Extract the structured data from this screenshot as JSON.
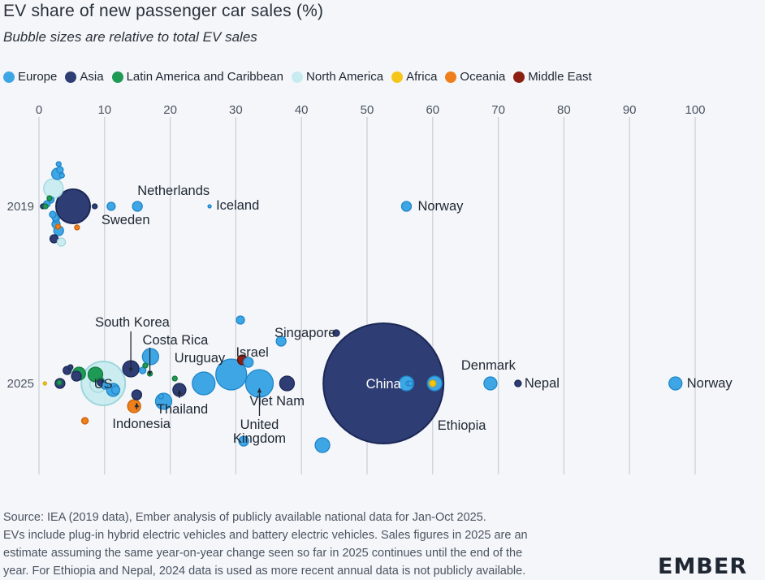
{
  "title": "EV share of new passenger car sales (%)",
  "subtitle": "Bubble sizes are relative to total EV sales",
  "legend": [
    {
      "label": "Europe",
      "color": "#3fa6e6"
    },
    {
      "label": "Asia",
      "color": "#2e3e74"
    },
    {
      "label": "Latin America and Caribbean",
      "color": "#1f9a55"
    },
    {
      "label": "North America",
      "color": "#c6ecf0"
    },
    {
      "label": "Africa",
      "color": "#f5c518"
    },
    {
      "label": "Oceania",
      "color": "#ef7f1a"
    },
    {
      "label": "Middle East",
      "color": "#8b1f12"
    }
  ],
  "source": [
    "Source: IEA (2019 data), Ember analysis of publicly available national data for Jan-Oct 2025.",
    "EVs include plug-in hybrid electric vehicles and battery electric vehicles. Sales figures in 2025 are an",
    "estimate assuming the same year-on-year change seen so far in 2025 continues until the end of the",
    "year. For Ethiopia and Nepal, 2024 data is used as more recent annual data is not publicly available."
  ],
  "logo": "EMBER",
  "chart_data": {
    "type": "scatter",
    "title": "EV share of new passenger car sales (%)",
    "xlim": [
      0,
      100
    ],
    "xticks": [
      0,
      10,
      20,
      30,
      40,
      50,
      60,
      70,
      80,
      90,
      100
    ],
    "categories": [
      "2019",
      "2025"
    ],
    "points": [
      {
        "year": "2019",
        "x": 5.2,
        "size": 21,
        "region": "Asia",
        "label": ""
      },
      {
        "year": "2019",
        "x": 2.2,
        "size": 12,
        "region": "North America",
        "label": ""
      },
      {
        "year": "2019",
        "x": 56,
        "size": 6,
        "region": "Europe",
        "label": "Norway"
      },
      {
        "year": "2019",
        "x": 26,
        "size": 2,
        "region": "Europe",
        "label": "Iceland"
      },
      {
        "year": "2019",
        "x": 15,
        "size": 6,
        "region": "Europe",
        "label": "Netherlands"
      },
      {
        "year": "2019",
        "x": 11,
        "size": 5,
        "region": "Europe",
        "label": "Sweden"
      },
      {
        "year": "2019",
        "x": 8.5,
        "size": 3,
        "region": "Asia",
        "label": ""
      },
      {
        "year": "2019",
        "x": 2.8,
        "size": 7,
        "region": "Europe",
        "label": ""
      },
      {
        "year": "2019",
        "x": 3.2,
        "size": 4,
        "region": "Europe",
        "label": ""
      },
      {
        "year": "2019",
        "x": 1.8,
        "size": 4,
        "region": "Europe",
        "label": ""
      },
      {
        "year": "2019",
        "x": 1.2,
        "size": 4,
        "region": "Europe",
        "label": ""
      },
      {
        "year": "2019",
        "x": 0.6,
        "size": 3,
        "region": "Asia",
        "label": ""
      },
      {
        "year": "2019",
        "x": 1.0,
        "size": 3,
        "region": "Latin America and Caribbean",
        "label": ""
      },
      {
        "year": "2019",
        "x": 2.6,
        "size": 5,
        "region": "Europe",
        "label": ""
      },
      {
        "year": "2019",
        "x": 3.0,
        "size": 6,
        "region": "Europe",
        "label": ""
      },
      {
        "year": "2019",
        "x": 2.3,
        "size": 5,
        "region": "Asia",
        "label": ""
      },
      {
        "year": "2019",
        "x": 3.4,
        "size": 5,
        "region": "North America",
        "label": ""
      },
      {
        "year": "2019",
        "x": 2.6,
        "size": 4,
        "region": "Europe",
        "label": ""
      },
      {
        "year": "2019",
        "x": 3.0,
        "size": 3,
        "region": "Europe",
        "label": ""
      },
      {
        "year": "2019",
        "x": 2.5,
        "size": 4,
        "region": "Europe",
        "label": ""
      },
      {
        "year": "2019",
        "x": 3.5,
        "size": 3,
        "region": "Europe",
        "label": ""
      },
      {
        "year": "2019",
        "x": 2.9,
        "size": 3,
        "region": "Oceania",
        "label": ""
      },
      {
        "year": "2019",
        "x": 5.8,
        "size": 3,
        "region": "Oceania",
        "label": ""
      },
      {
        "year": "2019",
        "x": 1.6,
        "size": 3,
        "region": "Latin America and Caribbean",
        "label": ""
      },
      {
        "year": "2019",
        "x": 2.1,
        "size": 4,
        "region": "Europe",
        "label": ""
      },
      {
        "year": "2025",
        "x": 52.5,
        "size": 74,
        "region": "Asia",
        "label": "China"
      },
      {
        "year": "2025",
        "x": 9.8,
        "size": 27,
        "region": "North America",
        "label": "US"
      },
      {
        "year": "2025",
        "x": 97,
        "size": 8,
        "region": "Europe",
        "label": "Norway"
      },
      {
        "year": "2025",
        "x": 68.8,
        "size": 8,
        "region": "Europe",
        "label": "Denmark"
      },
      {
        "year": "2025",
        "x": 73,
        "size": 4,
        "region": "Asia",
        "label": "Nepal"
      },
      {
        "year": "2025",
        "x": 60,
        "size": 4,
        "region": "Africa",
        "label": "Ethiopia"
      },
      {
        "year": "2025",
        "x": 45.3,
        "size": 4,
        "region": "Asia",
        "label": "Singapore"
      },
      {
        "year": "2025",
        "x": 31,
        "size": 6,
        "region": "Middle East",
        "label": "Israel"
      },
      {
        "year": "2025",
        "x": 33.6,
        "size": 17,
        "region": "Europe",
        "label": "United Kingdom"
      },
      {
        "year": "2025",
        "x": 37.8,
        "size": 9,
        "region": "Asia",
        "label": "Viet Nam"
      },
      {
        "year": "2025",
        "x": 29.3,
        "size": 19,
        "region": "Europe",
        "label": ""
      },
      {
        "year": "2025",
        "x": 25.1,
        "size": 14,
        "region": "Europe",
        "label": "Uruguay"
      },
      {
        "year": "2025",
        "x": 21.4,
        "size": 8,
        "region": "Asia",
        "label": "Thailand"
      },
      {
        "year": "2025",
        "x": 19,
        "size": 10,
        "region": "Europe",
        "label": ""
      },
      {
        "year": "2025",
        "x": 17,
        "size": 10,
        "region": "Europe",
        "label": ""
      },
      {
        "year": "2025",
        "x": 16.9,
        "size": 3,
        "region": "Latin America and Caribbean",
        "label": "Costa Rica"
      },
      {
        "year": "2025",
        "x": 14,
        "size": 10,
        "region": "Asia",
        "label": "South Korea"
      },
      {
        "year": "2025",
        "x": 14.5,
        "size": 8,
        "region": "Oceania",
        "label": ""
      },
      {
        "year": "2025",
        "x": 14.9,
        "size": 6,
        "region": "Asia",
        "label": "Indonesia"
      },
      {
        "year": "2025",
        "x": 11.3,
        "size": 8,
        "region": "Europe",
        "label": ""
      },
      {
        "year": "2025",
        "x": 8.6,
        "size": 9,
        "region": "Latin America and Caribbean",
        "label": ""
      },
      {
        "year": "2025",
        "x": 6.1,
        "size": 8,
        "region": "Latin America and Caribbean",
        "label": ""
      },
      {
        "year": "2025",
        "x": 5.7,
        "size": 6,
        "region": "Asia",
        "label": ""
      },
      {
        "year": "2025",
        "x": 3.2,
        "size": 6,
        "region": "Asia",
        "label": ""
      },
      {
        "year": "2025",
        "x": 4.3,
        "size": 5,
        "region": "Asia",
        "label": ""
      },
      {
        "year": "2025",
        "x": 7.0,
        "size": 4,
        "region": "Oceania",
        "label": ""
      },
      {
        "year": "2025",
        "x": 9.0,
        "size": 10,
        "region": "North America",
        "label": ""
      },
      {
        "year": "2025",
        "x": 9.4,
        "size": 4,
        "region": "Latin America and Caribbean",
        "label": ""
      },
      {
        "year": "2025",
        "x": 9.7,
        "size": 4,
        "region": "Europe",
        "label": ""
      },
      {
        "year": "2025",
        "x": 11.7,
        "size": 5,
        "region": "Europe",
        "label": ""
      },
      {
        "year": "2025",
        "x": 9.4,
        "size": 4,
        "region": "Asia",
        "label": ""
      },
      {
        "year": "2025",
        "x": 10,
        "size": 4,
        "region": "Europe",
        "label": ""
      },
      {
        "year": "2025",
        "x": 0.9,
        "size": 2,
        "region": "Africa",
        "label": ""
      },
      {
        "year": "2025",
        "x": 3.1,
        "size": 3,
        "region": "Latin America and Caribbean",
        "label": ""
      },
      {
        "year": "2025",
        "x": 4.8,
        "size": 3,
        "region": "Asia",
        "label": ""
      },
      {
        "year": "2025",
        "x": 15.8,
        "size": 4,
        "region": "Europe",
        "label": ""
      },
      {
        "year": "2025",
        "x": 16.2,
        "size": 3,
        "region": "Latin America and Caribbean",
        "label": ""
      },
      {
        "year": "2025",
        "x": 20.7,
        "size": 3,
        "region": "Latin America and Caribbean",
        "label": ""
      },
      {
        "year": "2025",
        "x": 18.6,
        "size": 3,
        "region": "Europe",
        "label": ""
      },
      {
        "year": "2025",
        "x": 31.9,
        "size": 6,
        "region": "Europe",
        "label": ""
      },
      {
        "year": "2025",
        "x": 30.7,
        "size": 5,
        "region": "Europe",
        "label": ""
      },
      {
        "year": "2025",
        "x": 36.9,
        "size": 6,
        "region": "Europe",
        "label": ""
      },
      {
        "year": "2025",
        "x": 31.2,
        "size": 6,
        "region": "Europe",
        "label": ""
      },
      {
        "year": "2025",
        "x": 43.2,
        "size": 9,
        "region": "Europe",
        "label": ""
      },
      {
        "year": "2025",
        "x": 56,
        "size": 9,
        "region": "Europe",
        "label": ""
      },
      {
        "year": "2025",
        "x": 60.3,
        "size": 9,
        "region": "Europe",
        "label": ""
      },
      {
        "year": "2025",
        "x": 56.3,
        "size": 3,
        "region": "Europe",
        "label": ""
      },
      {
        "year": "2025",
        "x": 56.6,
        "size": 3,
        "region": "Europe",
        "label": ""
      }
    ]
  }
}
